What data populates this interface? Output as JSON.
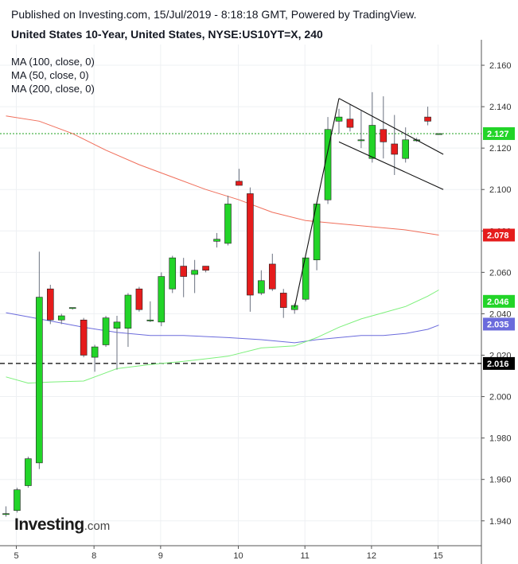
{
  "header": {
    "published": "Published on Investing.com, 15/Jul/2019 - 8:18:18 GMT, Powered by TradingView.",
    "instrument": "United States 10-Year, United States, NYSE:US10YT=X, 240"
  },
  "legend": {
    "ma100": "MA (100, close, 0)",
    "ma50": "MA (50, close, 0)",
    "ma200": "MA (200, close, 0)"
  },
  "logo": {
    "brand": "Investing",
    "suffix": ".com"
  },
  "colors": {
    "up": "#22d428",
    "down": "#e51c1c",
    "ma100": "#f06e5a",
    "ma50": "#7cf07a",
    "ma200": "#6b6bdc",
    "current_price_line": "#1fa01f",
    "support_line": "#000000",
    "label_text": "#ffffff"
  },
  "chart_data": {
    "type": "candlestick",
    "interval": "240",
    "x_tick_labels": [
      "5",
      "8",
      "9",
      "10",
      "11",
      "12",
      "15"
    ],
    "y_tick_labels": [
      "2.160",
      "2.140",
      "2.120",
      "2.100",
      "2.080",
      "2.060",
      "2.040",
      "2.020",
      "2.000",
      "1.980",
      "1.960",
      "1.940"
    ],
    "ylim": [
      1.928,
      2.17
    ],
    "grid": true,
    "price_axis": "right",
    "candles": [
      {
        "o": 1.9435,
        "h": 1.947,
        "l": 1.942,
        "c": 1.9435
      },
      {
        "o": 1.945,
        "h": 1.956,
        "l": 1.944,
        "c": 1.955
      },
      {
        "o": 1.957,
        "h": 1.971,
        "l": 1.956,
        "c": 1.97
      },
      {
        "o": 1.968,
        "h": 2.07,
        "l": 1.965,
        "c": 2.048
      },
      {
        "o": 2.052,
        "h": 2.054,
        "l": 2.035,
        "c": 2.037
      },
      {
        "o": 2.037,
        "h": 2.04,
        "l": 2.035,
        "c": 2.039
      },
      {
        "o": 2.043,
        "h": 2.043,
        "l": 2.042,
        "c": 2.043
      },
      {
        "o": 2.037,
        "h": 2.038,
        "l": 2.019,
        "c": 2.02
      },
      {
        "o": 2.019,
        "h": 2.025,
        "l": 2.012,
        "c": 2.024
      },
      {
        "o": 2.025,
        "h": 2.039,
        "l": 2.024,
        "c": 2.038
      },
      {
        "o": 2.033,
        "h": 2.039,
        "l": 2.013,
        "c": 2.036
      },
      {
        "o": 2.033,
        "h": 2.05,
        "l": 2.024,
        "c": 2.049
      },
      {
        "o": 2.052,
        "h": 2.053,
        "l": 2.041,
        "c": 2.042
      },
      {
        "o": 2.037,
        "h": 2.046,
        "l": 2.036,
        "c": 2.037
      },
      {
        "o": 2.036,
        "h": 2.06,
        "l": 2.034,
        "c": 2.058
      },
      {
        "o": 2.052,
        "h": 2.068,
        "l": 2.05,
        "c": 2.067
      },
      {
        "o": 2.063,
        "h": 2.067,
        "l": 2.048,
        "c": 2.058
      },
      {
        "o": 2.059,
        "h": 2.066,
        "l": 2.05,
        "c": 2.061
      },
      {
        "o": 2.063,
        "h": 2.063,
        "l": 2.06,
        "c": 2.061
      },
      {
        "o": 2.075,
        "h": 2.079,
        "l": 2.072,
        "c": 2.076
      },
      {
        "o": 2.074,
        "h": 2.097,
        "l": 2.073,
        "c": 2.093
      },
      {
        "o": 2.104,
        "h": 2.11,
        "l": 2.102,
        "c": 2.102
      },
      {
        "o": 2.098,
        "h": 2.101,
        "l": 2.041,
        "c": 2.049
      },
      {
        "o": 2.05,
        "h": 2.061,
        "l": 2.049,
        "c": 2.056
      },
      {
        "o": 2.064,
        "h": 2.069,
        "l": 2.051,
        "c": 2.052
      },
      {
        "o": 2.05,
        "h": 2.052,
        "l": 2.038,
        "c": 2.043
      },
      {
        "o": 2.042,
        "h": 2.045,
        "l": 2.04,
        "c": 2.044
      },
      {
        "o": 2.047,
        "h": 2.067,
        "l": 2.046,
        "c": 2.067
      },
      {
        "o": 2.066,
        "h": 2.094,
        "l": 2.061,
        "c": 2.093
      },
      {
        "o": 2.095,
        "h": 2.135,
        "l": 2.093,
        "c": 2.129
      },
      {
        "o": 2.133,
        "h": 2.139,
        "l": 2.127,
        "c": 2.135
      },
      {
        "o": 2.134,
        "h": 2.141,
        "l": 2.128,
        "c": 2.13
      },
      {
        "o": 2.124,
        "h": 2.138,
        "l": 2.12,
        "c": 2.124
      },
      {
        "o": 2.115,
        "h": 2.147,
        "l": 2.113,
        "c": 2.131
      },
      {
        "o": 2.129,
        "h": 2.145,
        "l": 2.115,
        "c": 2.123
      },
      {
        "o": 2.122,
        "h": 2.136,
        "l": 2.107,
        "c": 2.117
      },
      {
        "o": 2.115,
        "h": 2.13,
        "l": 2.113,
        "c": 2.124
      },
      {
        "o": 2.124,
        "h": 2.125,
        "l": 2.123,
        "c": 2.124
      },
      {
        "o": 2.135,
        "h": 2.14,
        "l": 2.131,
        "c": 2.133
      },
      {
        "o": 2.127,
        "h": 2.127,
        "l": 2.127,
        "c": 2.127
      }
    ],
    "x_tick_candle_index": [
      0,
      7,
      13,
      20,
      26,
      32,
      38
    ],
    "moving_averages": [
      {
        "label": "MA (100, close, 0)",
        "color_key": "ma100",
        "points": [
          [
            0,
            2.1355
          ],
          [
            3,
            2.133
          ],
          [
            6,
            2.127
          ],
          [
            9,
            2.119
          ],
          [
            12,
            2.112
          ],
          [
            15,
            2.106
          ],
          [
            18,
            2.1
          ],
          [
            21,
            2.095
          ],
          [
            24,
            2.089
          ],
          [
            27,
            2.085
          ],
          [
            30,
            2.0835
          ],
          [
            33,
            2.082
          ],
          [
            36,
            2.0805
          ],
          [
            39,
            2.078
          ]
        ]
      },
      {
        "label": "MA (50, close, 0)",
        "color_key": "ma200",
        "points": [
          [
            0,
            2.0405
          ],
          [
            2,
            2.0385
          ],
          [
            4,
            2.0365
          ],
          [
            7,
            2.0335
          ],
          [
            10,
            2.031
          ],
          [
            13,
            2.0295
          ],
          [
            16,
            2.0295
          ],
          [
            20,
            2.0285
          ],
          [
            23,
            2.0275
          ],
          [
            26,
            2.026
          ],
          [
            28,
            2.0275
          ],
          [
            30,
            2.0285
          ],
          [
            32,
            2.0295
          ],
          [
            34,
            2.0295
          ],
          [
            36,
            2.0305
          ],
          [
            38,
            2.0325
          ],
          [
            39,
            2.0345
          ]
        ]
      },
      {
        "label": "MA (200, close, 0)",
        "color_key": "ma50",
        "points": [
          [
            0,
            2.0095
          ],
          [
            2,
            2.0065
          ],
          [
            4,
            2.007
          ],
          [
            7,
            2.0075
          ],
          [
            10,
            2.0135
          ],
          [
            13,
            2.0155
          ],
          [
            16,
            2.017
          ],
          [
            20,
            2.0195
          ],
          [
            23,
            2.0235
          ],
          [
            26,
            2.0245
          ],
          [
            28,
            2.0285
          ],
          [
            30,
            2.0335
          ],
          [
            32,
            2.0375
          ],
          [
            34,
            2.0405
          ],
          [
            36,
            2.0435
          ],
          [
            38,
            2.0485
          ],
          [
            39,
            2.0515
          ]
        ]
      }
    ],
    "price_labels": [
      {
        "value": 2.127,
        "text": "2.127",
        "color_key": "up"
      },
      {
        "value": 2.078,
        "text": "2.078",
        "color_key": "down"
      },
      {
        "value": 2.046,
        "text": "2.046",
        "color_key": "up"
      },
      {
        "value": 2.035,
        "text": "2.035",
        "color_key": "ma200"
      },
      {
        "value": 2.016,
        "text": "2.016",
        "color_key": "support_line"
      }
    ],
    "horizontal_lines": [
      {
        "value": 2.127,
        "style": "dotted",
        "color_key": "current_price_line"
      },
      {
        "value": 2.016,
        "style": "dashed",
        "color_key": "support_line"
      }
    ],
    "trend_lines": [
      {
        "name": "flagpole",
        "from": [
          26,
          2.043
        ],
        "to": [
          30,
          2.144
        ]
      },
      {
        "name": "flag-upper",
        "from": [
          30,
          2.144
        ],
        "to": [
          39.4,
          2.117
        ]
      },
      {
        "name": "flag-lower",
        "from": [
          30,
          2.123
        ],
        "to": [
          39.4,
          2.1
        ]
      }
    ]
  }
}
